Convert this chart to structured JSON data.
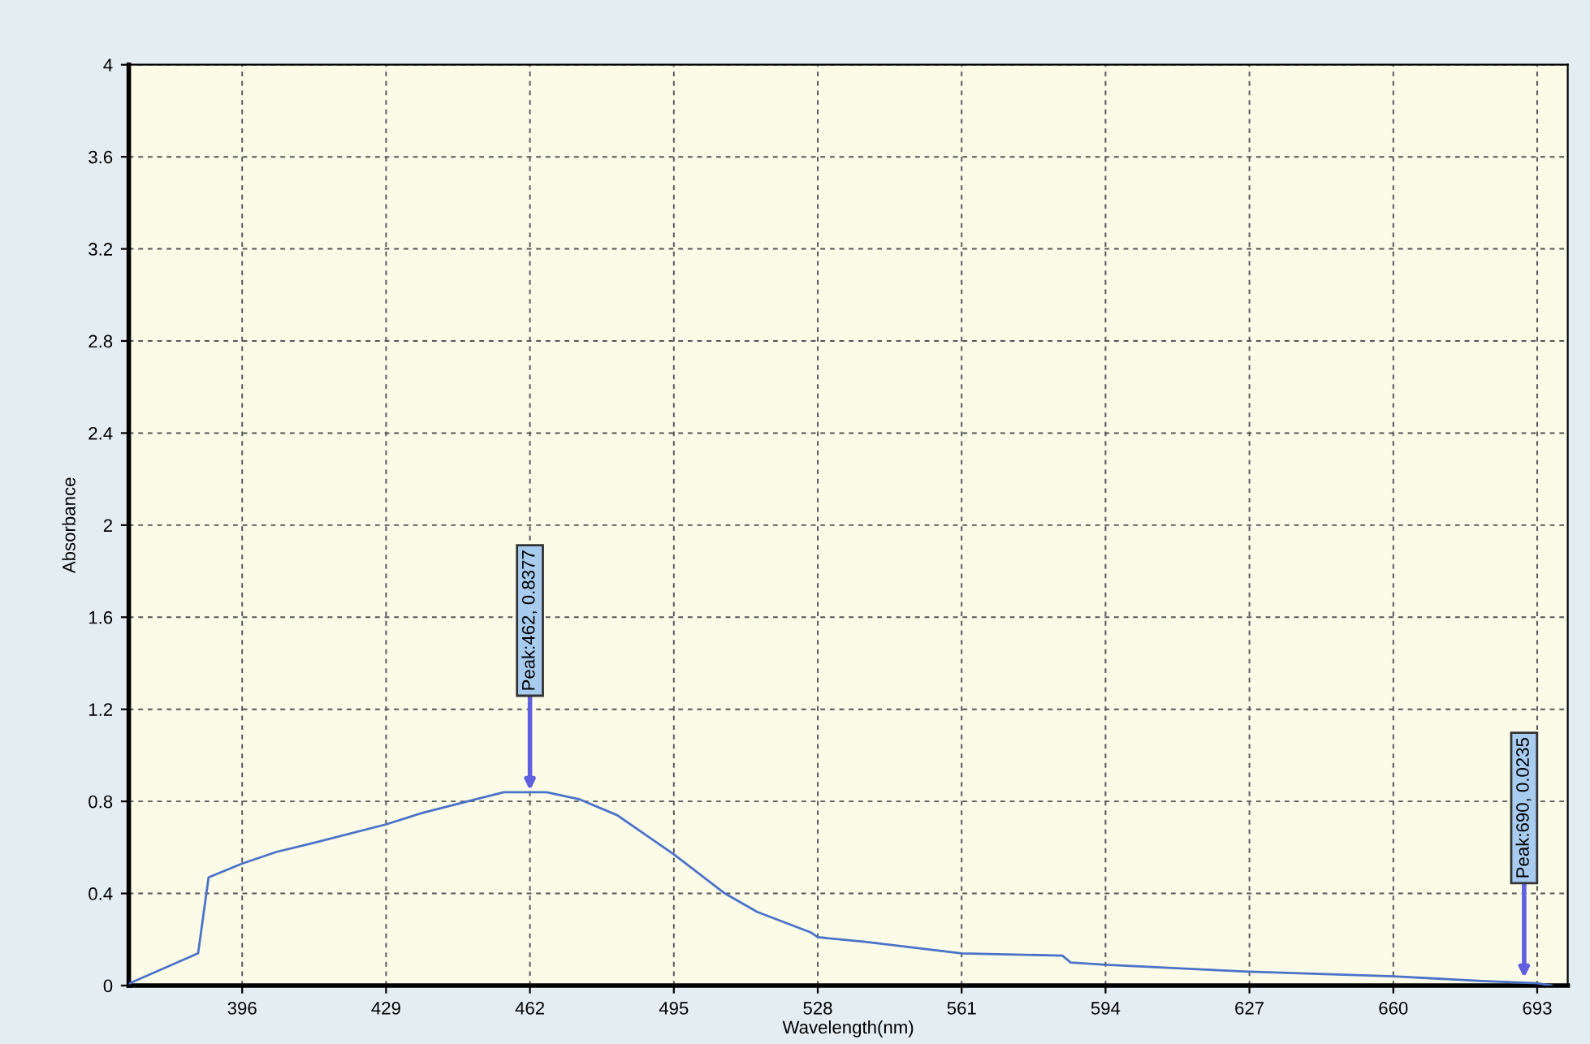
{
  "chart_data": {
    "type": "line",
    "xlabel": "Wavelength(nm)",
    "ylabel": "Absorbance",
    "x": [
      370.2,
      385.9,
      388.3,
      396,
      403.8,
      412.5,
      429,
      437.3,
      449.7,
      456,
      465.8,
      473.2,
      482,
      495,
      506.7,
      514.1,
      526.5,
      528,
      538.9,
      561,
      584.1,
      586,
      594,
      627,
      660,
      680.2,
      693,
      696.3
    ],
    "series": [
      {
        "color": "#4a72c8",
        "values": [
          0.01,
          0.14,
          0.47,
          0.53,
          0.58,
          0.62,
          0.7,
          0.75,
          0.81,
          0.84,
          0.84,
          0.81,
          0.74,
          0.57,
          0.4,
          0.32,
          0.23,
          0.21,
          0.19,
          0.14,
          0.13,
          0.1,
          0.09,
          0.06,
          0.04,
          0.02,
          0.01,
          0.0
        ]
      }
    ],
    "xlim": [
      370,
      700
    ],
    "xticks": [
      396,
      429,
      462,
      495,
      528,
      561,
      594,
      627,
      660,
      693
    ],
    "ylim": [
      0,
      4
    ],
    "yticks": [
      0,
      0.4,
      0.8,
      1.2,
      1.6,
      2,
      2.4,
      2.8,
      3.2,
      3.6,
      4
    ],
    "grid": true,
    "line_style": "solid",
    "marker": "none",
    "annotations": [
      {
        "text": "Peak:462, 0.8377",
        "x": 462,
        "y": 0.8377
      },
      {
        "text": "Peak:690, 0.0235",
        "x": 690,
        "y": 0.0235
      }
    ]
  }
}
